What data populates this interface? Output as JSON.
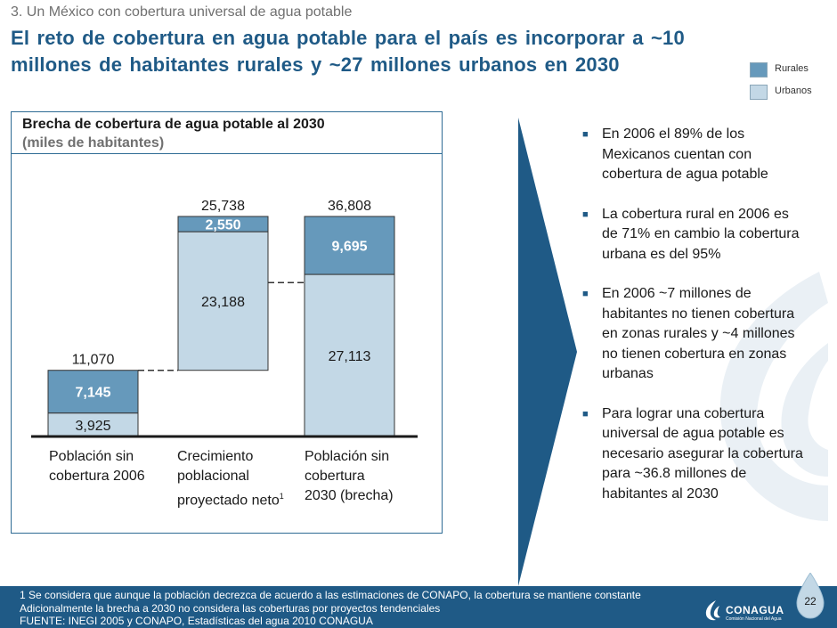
{
  "header": {
    "section": "3. Un México con cobertura universal de agua potable",
    "headline_line1": "El reto de cobertura en agua potable para el país es incorporar a ~10",
    "headline_line2": "millones de habitantes rurales y ~27 millones urbanos en 2030"
  },
  "legend": {
    "items": [
      {
        "label": "Rurales",
        "color": "#6699bb"
      },
      {
        "label": "Urbanos",
        "color": "#c3d8e6"
      }
    ]
  },
  "chart_data": {
    "type": "bar",
    "title": "Brecha de cobertura de agua potable al 2030",
    "subtitle": "(miles de habitantes)",
    "categories": [
      "Población sin cobertura 2006",
      "Crecimiento poblacional proyectado neto",
      "Población sin cobertura 2030 (brecha)"
    ],
    "category_lines": [
      [
        "Población sin",
        "cobertura 2006"
      ],
      [
        "Crecimiento",
        "poblacional",
        "proyectado neto"
      ],
      [
        "Población sin",
        "cobertura",
        "2030 (brecha)"
      ]
    ],
    "category_footnote_marks": [
      "",
      "1",
      ""
    ],
    "series": [
      {
        "name": "Urbanos",
        "values": [
          3925,
          23188,
          27113
        ],
        "labels": [
          "3,925",
          "23,188",
          "27,113"
        ],
        "color": "#c3d8e6"
      },
      {
        "name": "Rurales",
        "values": [
          7145,
          2550,
          9695
        ],
        "labels": [
          "7,145",
          "2,550",
          "9,695"
        ],
        "color": "#6699bb"
      }
    ],
    "totals": [
      11070,
      25738,
      36808
    ],
    "total_labels": [
      "11,070",
      "25,738",
      "36,808"
    ],
    "waterfall_bases": [
      0,
      11070,
      0
    ],
    "ylim": [
      0,
      36808
    ]
  },
  "bullets": [
    "En 2006 el 89% de los Mexicanos cuentan con cobertura de agua potable",
    "La cobertura rural en 2006 es de 71% en cambio la cobertura urbana es del 95%",
    "En 2006 ~7 millones de habitantes no tienen cobertura en zonas rurales y ~4 millones no tienen cobertura en zonas urbanas",
    "Para lograr una cobertura universal de agua potable es necesario asegurar la cobertura para ~36.8 millones de habitantes al 2030"
  ],
  "footnotes": {
    "note1": "1 Se considera que aunque la población decrezca de acuerdo a las estimaciones de CONAPO, la cobertura se mantiene constante",
    "note2": "Adicionalmente la brecha a 2030 no considera las coberturas por proyectos tendenciales",
    "source": "FUENTE: INEGI 2005 y CONAPO, Estadísticas del agua 2010 CONAGUA"
  },
  "page_number": "22",
  "logo": {
    "name": "CONAGUA",
    "subtitle": "Comisión Nacional del Agua"
  },
  "colors": {
    "accent": "#1f5a86",
    "footer": "#1f5a86",
    "arrow": "#1f5a86"
  }
}
